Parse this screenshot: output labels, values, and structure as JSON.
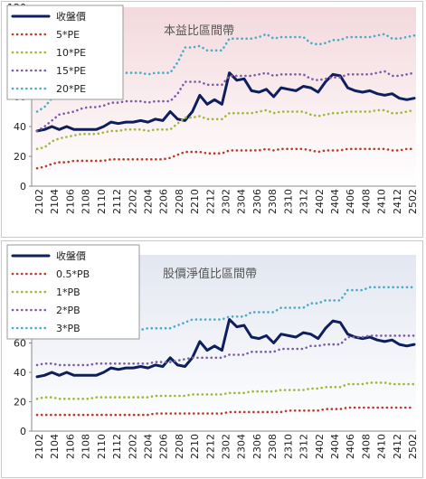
{
  "chart_data": [
    {
      "type": "line",
      "title": "本益比區間帶",
      "ylim": [
        0,
        120
      ],
      "yticks": [
        0,
        20,
        40,
        60,
        80,
        100,
        120
      ],
      "grid": false,
      "legend_position": "top-left",
      "x_labels": [
        "2102",
        "2104",
        "2106",
        "2108",
        "2110",
        "2112",
        "2202",
        "2204",
        "2206",
        "2208",
        "2210",
        "2212",
        "2302",
        "2304",
        "2306",
        "2308",
        "2310",
        "2312",
        "2402",
        "2404",
        "2406",
        "2408",
        "2410",
        "2412",
        "2502"
      ],
      "background_colors": [
        "#f3d9dd",
        "#ffffff"
      ],
      "series": [
        {
          "name": "收盤價",
          "color": "#0d1f5c",
          "style": "solid",
          "values": [
            37,
            38,
            40,
            38,
            40,
            38,
            38,
            38,
            38,
            40,
            43,
            42,
            43,
            43,
            44,
            43,
            45,
            44,
            50,
            45,
            44,
            50,
            61,
            55,
            58,
            55,
            76,
            71,
            72,
            64,
            63,
            65,
            60,
            66,
            65,
            64,
            67,
            66,
            63,
            70,
            75,
            74,
            66,
            64,
            63,
            64,
            62,
            61,
            62,
            59,
            58,
            59
          ]
        },
        {
          "name": "5*PE",
          "color": "#c0392b",
          "style": "dotted",
          "values": [
            12,
            13,
            15,
            16,
            16,
            17,
            17,
            17,
            17,
            17,
            18,
            18,
            18,
            18,
            18,
            18,
            18,
            18,
            19,
            21,
            23,
            23,
            23,
            22,
            22,
            22,
            24,
            24,
            24,
            24,
            24,
            25,
            24,
            25,
            25,
            25,
            25,
            24,
            23,
            24,
            24,
            24,
            25,
            25,
            25,
            25,
            25,
            25,
            24,
            24,
            25,
            25
          ]
        },
        {
          "name": "10*PE",
          "color": "#9cba3a",
          "style": "dotted",
          "values": [
            25,
            26,
            30,
            32,
            33,
            34,
            35,
            35,
            35,
            36,
            37,
            37,
            38,
            38,
            38,
            37,
            38,
            38,
            38,
            42,
            46,
            46,
            47,
            45,
            45,
            45,
            49,
            49,
            49,
            49,
            50,
            51,
            49,
            50,
            50,
            50,
            50,
            48,
            47,
            48,
            49,
            49,
            50,
            50,
            50,
            50,
            51,
            51,
            49,
            49,
            50,
            51
          ]
        },
        {
          "name": "15*PE",
          "color": "#7b5ea7",
          "style": "dotted",
          "values": [
            37,
            40,
            44,
            48,
            49,
            50,
            52,
            53,
            53,
            54,
            56,
            56,
            57,
            57,
            57,
            56,
            57,
            57,
            57,
            62,
            70,
            70,
            70,
            68,
            68,
            68,
            74,
            74,
            74,
            74,
            75,
            76,
            74,
            75,
            75,
            75,
            75,
            72,
            71,
            72,
            73,
            73,
            75,
            75,
            75,
            75,
            76,
            77,
            74,
            74,
            75,
            76
          ]
        },
        {
          "name": "20*PE",
          "color": "#4bacc6",
          "style": "dotted",
          "values": [
            50,
            53,
            59,
            64,
            66,
            67,
            69,
            71,
            71,
            72,
            75,
            75,
            76,
            76,
            76,
            75,
            76,
            76,
            76,
            83,
            93,
            93,
            94,
            91,
            91,
            91,
            99,
            99,
            99,
            99,
            100,
            102,
            99,
            100,
            100,
            100,
            100,
            96,
            95,
            96,
            98,
            98,
            100,
            100,
            100,
            100,
            101,
            102,
            99,
            99,
            100,
            101
          ]
        }
      ]
    },
    {
      "type": "line",
      "title": "股價淨值比區間帶",
      "ylim": [
        0,
        120
      ],
      "yticks": [
        0,
        20,
        40,
        60,
        80,
        100,
        120
      ],
      "grid": false,
      "legend_position": "top-left",
      "x_labels": [
        "2102",
        "2104",
        "2106",
        "2108",
        "2110",
        "2112",
        "2202",
        "2204",
        "2206",
        "2208",
        "2210",
        "2212",
        "2302",
        "2304",
        "2306",
        "2308",
        "2310",
        "2312",
        "2402",
        "2404",
        "2406",
        "2408",
        "2410",
        "2412",
        "2502"
      ],
      "background_colors": [
        "#e3e7f1",
        "#ffffff"
      ],
      "series": [
        {
          "name": "收盤價",
          "color": "#0d1f5c",
          "style": "solid",
          "values": [
            37,
            38,
            40,
            38,
            40,
            38,
            38,
            38,
            38,
            40,
            43,
            42,
            43,
            43,
            44,
            43,
            45,
            44,
            50,
            45,
            44,
            50,
            61,
            55,
            58,
            55,
            76,
            71,
            72,
            64,
            63,
            65,
            60,
            66,
            65,
            64,
            67,
            66,
            63,
            70,
            75,
            74,
            66,
            64,
            63,
            64,
            62,
            61,
            62,
            59,
            58,
            59
          ]
        },
        {
          "name": "0.5*PB",
          "color": "#c0392b",
          "style": "dotted",
          "values": [
            11,
            11,
            11,
            11,
            11,
            11,
            11,
            11,
            11,
            11,
            11,
            11,
            11,
            11,
            11,
            11,
            12,
            12,
            12,
            12,
            12,
            12,
            12,
            12,
            12,
            12,
            13,
            13,
            13,
            13,
            13,
            13,
            13,
            13,
            14,
            14,
            14,
            14,
            14,
            15,
            15,
            15,
            16,
            16,
            16,
            16,
            16,
            16,
            16,
            16,
            16,
            16
          ]
        },
        {
          "name": "1*PB",
          "color": "#9cba3a",
          "style": "dotted",
          "values": [
            22,
            23,
            23,
            22,
            22,
            22,
            22,
            22,
            23,
            23,
            23,
            23,
            23,
            23,
            23,
            23,
            24,
            24,
            24,
            24,
            24,
            25,
            25,
            25,
            25,
            25,
            26,
            26,
            26,
            27,
            27,
            27,
            27,
            28,
            28,
            28,
            28,
            29,
            29,
            30,
            30,
            30,
            32,
            32,
            32,
            33,
            33,
            33,
            32,
            32,
            32,
            32
          ]
        },
        {
          "name": "2*PB",
          "color": "#7b5ea7",
          "style": "dotted",
          "values": [
            45,
            46,
            46,
            45,
            45,
            45,
            45,
            45,
            46,
            46,
            46,
            46,
            46,
            46,
            46,
            46,
            47,
            47,
            47,
            48,
            49,
            50,
            50,
            50,
            50,
            50,
            52,
            52,
            52,
            54,
            54,
            54,
            54,
            56,
            56,
            56,
            56,
            58,
            58,
            59,
            59,
            59,
            64,
            64,
            64,
            65,
            65,
            65,
            65,
            65,
            65,
            65
          ]
        },
        {
          "name": "3*PB",
          "color": "#4bacc6",
          "style": "dotted",
          "values": [
            67,
            68,
            69,
            68,
            68,
            68,
            68,
            68,
            69,
            69,
            69,
            69,
            69,
            69,
            69,
            70,
            70,
            70,
            70,
            72,
            74,
            76,
            76,
            76,
            76,
            76,
            78,
            78,
            78,
            81,
            81,
            81,
            81,
            84,
            84,
            84,
            84,
            87,
            87,
            89,
            89,
            89,
            96,
            96,
            96,
            98,
            98,
            98,
            98,
            98,
            98,
            98
          ]
        }
      ]
    }
  ]
}
